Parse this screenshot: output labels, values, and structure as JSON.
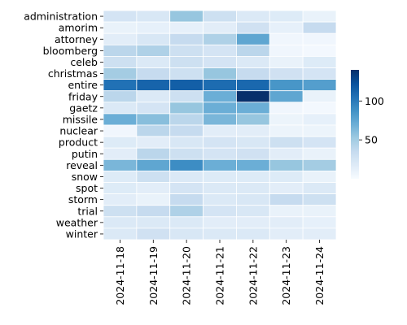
{
  "chart_data": {
    "type": "heatmap",
    "title": "",
    "xlabel": "",
    "ylabel": "",
    "x": [
      "2024-11-18",
      "2024-11-19",
      "2024-11-20",
      "2024-11-21",
      "2024-11-22",
      "2024-11-23",
      "2024-11-24"
    ],
    "y": [
      "administration",
      "amorim",
      "attorney",
      "bloomberg",
      "celeb",
      "christmas",
      "entire",
      "friday",
      "gaetz",
      "missile",
      "nuclear",
      "product",
      "putin",
      "reveal",
      "snow",
      "spot",
      "storm",
      "trial",
      "weather",
      "winter"
    ],
    "values": [
      [
        25,
        22,
        55,
        30,
        20,
        18,
        10
      ],
      [
        10,
        12,
        12,
        15,
        28,
        12,
        35
      ],
      [
        15,
        22,
        35,
        45,
        75,
        5,
        5
      ],
      [
        40,
        45,
        30,
        25,
        40,
        5,
        3
      ],
      [
        30,
        20,
        30,
        25,
        20,
        10,
        18
      ],
      [
        50,
        35,
        30,
        55,
        35,
        28,
        25
      ],
      [
        105,
        112,
        115,
        108,
        110,
        85,
        80
      ],
      [
        40,
        20,
        30,
        70,
        140,
        75,
        10
      ],
      [
        20,
        25,
        55,
        70,
        70,
        5,
        3
      ],
      [
        70,
        60,
        40,
        65,
        55,
        8,
        12
      ],
      [
        5,
        40,
        35,
        15,
        15,
        8,
        8
      ],
      [
        18,
        15,
        22,
        25,
        22,
        30,
        25
      ],
      [
        15,
        40,
        30,
        25,
        28,
        15,
        10
      ],
      [
        65,
        75,
        90,
        70,
        70,
        55,
        50
      ],
      [
        18,
        30,
        20,
        18,
        18,
        18,
        10
      ],
      [
        18,
        15,
        25,
        20,
        20,
        15,
        20
      ],
      [
        15,
        10,
        35,
        20,
        22,
        35,
        30
      ],
      [
        30,
        35,
        45,
        25,
        22,
        10,
        10
      ],
      [
        20,
        20,
        20,
        15,
        15,
        15,
        12
      ],
      [
        20,
        28,
        22,
        20,
        20,
        15,
        15
      ]
    ],
    "colorbar": {
      "min": 0,
      "max": 140,
      "ticks": [
        50,
        100
      ]
    },
    "colormap": "Blues",
    "grid": true
  }
}
